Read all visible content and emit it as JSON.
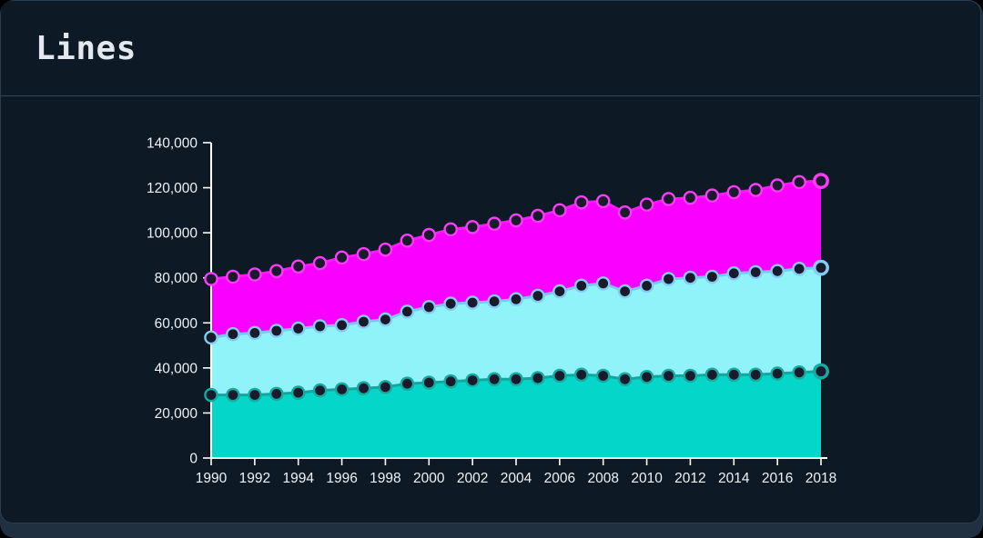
{
  "window": {
    "title": "Lines"
  },
  "theme": {
    "page_bg": "#000000",
    "screen_bg": "#203040",
    "card_bg": "#0d1925",
    "card_border": "#2a3c4f",
    "header_divider": "#324459",
    "title_color": "#e2e8ee",
    "axis_color": "#ffffff",
    "tick_label_color": "#eef2f6",
    "point_center_fill": "#191a2c"
  },
  "chart_data": {
    "type": "area",
    "title": "Lines",
    "xlabel": "",
    "ylabel": "",
    "ylim": [
      0,
      140000
    ],
    "grid": false,
    "legend": false,
    "draw_order": "back-to-front",
    "x": [
      1990,
      1991,
      1992,
      1993,
      1994,
      1995,
      1996,
      1997,
      1998,
      1999,
      2000,
      2001,
      2002,
      2003,
      2004,
      2005,
      2006,
      2007,
      2008,
      2009,
      2010,
      2011,
      2012,
      2013,
      2014,
      2015,
      2016,
      2017,
      2018
    ],
    "x_tick_labels": [
      "1990",
      "1992",
      "1994",
      "1996",
      "1998",
      "2000",
      "2002",
      "2004",
      "2006",
      "2008",
      "2010",
      "2012",
      "2014",
      "2016",
      "2018"
    ],
    "y_tick_labels": [
      "0",
      "20,000",
      "40,000",
      "60,000",
      "80,000",
      "100,000",
      "120,000",
      "140,000"
    ],
    "series": [
      {
        "name": "magenta-area",
        "fill": "#fa00ff",
        "line": "#fb1cfb",
        "point_ring": "#fb3dfb",
        "values": [
          79500,
          80500,
          81500,
          83000,
          85000,
          86500,
          89000,
          90500,
          92500,
          96500,
          99000,
          101500,
          102500,
          104000,
          105500,
          107500,
          110000,
          113500,
          114000,
          109000,
          112500,
          115000,
          115500,
          116500,
          118000,
          119000,
          121000,
          122500,
          123000
        ]
      },
      {
        "name": "pale-cyan-area",
        "fill": "#8ff3f9",
        "line": "#7dc4ee",
        "point_ring": "#83cdf2",
        "values": [
          53500,
          55000,
          55500,
          56500,
          57500,
          58500,
          59000,
          60500,
          61500,
          65000,
          67000,
          68500,
          69000,
          69500,
          70500,
          72000,
          74000,
          76500,
          77500,
          74000,
          76500,
          79500,
          80000,
          80500,
          82000,
          82500,
          83000,
          84000,
          84500
        ]
      },
      {
        "name": "teal-area",
        "fill": "#04d7ca",
        "line": "#12a69d",
        "point_ring": "#15aba1",
        "values": [
          28000,
          28000,
          28000,
          28500,
          29000,
          30000,
          30500,
          31000,
          31500,
          33000,
          33500,
          34000,
          34500,
          35000,
          35000,
          35500,
          36500,
          37000,
          36500,
          35000,
          36000,
          36500,
          36500,
          37000,
          37000,
          37000,
          37500,
          38000,
          38500
        ]
      }
    ]
  }
}
